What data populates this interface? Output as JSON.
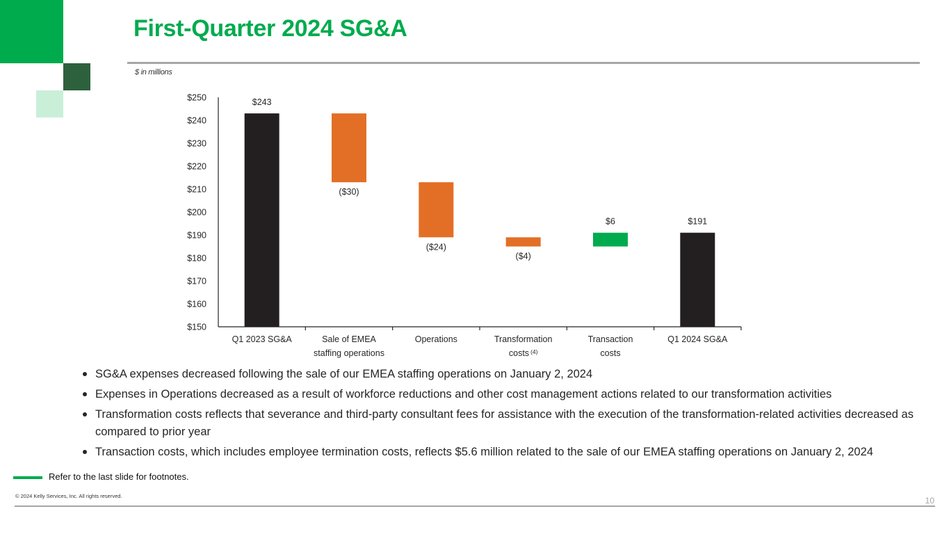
{
  "colors": {
    "brand_green": "#00ab4e",
    "dark_green": "#2d613d",
    "light_green": "#c9efd9",
    "decrease": "#e36f26",
    "increase": "#00ab4e",
    "total": "#231f20",
    "rule_gray": "#a6a6a6"
  },
  "header": {
    "title": "First-Quarter 2024 SG&A",
    "units_note": "$ in millions"
  },
  "chart_data": {
    "type": "bar",
    "subtype": "waterfall",
    "ylim": [
      150,
      250
    ],
    "yticks": [
      {
        "value": 150,
        "label": "$150"
      },
      {
        "value": 160,
        "label": "$160"
      },
      {
        "value": 170,
        "label": "$170"
      },
      {
        "value": 180,
        "label": "$180"
      },
      {
        "value": 190,
        "label": "$190"
      },
      {
        "value": 200,
        "label": "$200"
      },
      {
        "value": 210,
        "label": "$210"
      },
      {
        "value": 220,
        "label": "$220"
      },
      {
        "value": 230,
        "label": "$230"
      },
      {
        "value": 240,
        "label": "$240"
      },
      {
        "value": 250,
        "label": "$250"
      }
    ],
    "bars": [
      {
        "category": [
          "Q1 2023 SG&A"
        ],
        "kind": "total",
        "start": 150,
        "end": 243,
        "label": "$243",
        "label_pos": "above"
      },
      {
        "category": [
          "Sale of EMEA",
          "staffing operations"
        ],
        "kind": "decrease",
        "start": 243,
        "end": 213,
        "label": "($30)",
        "label_pos": "below"
      },
      {
        "category": [
          "Operations"
        ],
        "kind": "decrease",
        "start": 213,
        "end": 189,
        "label": "($24)",
        "label_pos": "below"
      },
      {
        "category": [
          "Transformation",
          "costs"
        ],
        "category_sup": "(4)",
        "kind": "decrease",
        "start": 189,
        "end": 185,
        "label": "($4)",
        "label_pos": "below"
      },
      {
        "category": [
          "Transaction",
          "costs"
        ],
        "kind": "increase",
        "start": 185,
        "end": 191,
        "label": "$6",
        "label_pos": "above"
      },
      {
        "category": [
          "Q1 2024 SG&A"
        ],
        "kind": "total",
        "start": 150,
        "end": 191,
        "label": "$191",
        "label_pos": "above"
      }
    ]
  },
  "bullets": [
    "SG&A expenses decreased following the sale of our EMEA staffing operations on January 2, 2024",
    "Expenses in Operations decreased as a result of workforce reductions and other cost management actions related to our transformation activities",
    "Transformation costs reflects that severance and third-party consultant fees for assistance with the execution of the transformation-related activities decreased as compared to prior year",
    "Transaction costs, which includes employee termination costs, reflects $5.6 million related to the sale of our EMEA staffing operations on January 2, 2024"
  ],
  "footer": {
    "footnote_note": "Refer to the last slide for footnotes.",
    "copyright": "© 2024 Kelly Services, Inc. All rights reserved.",
    "page_number": "10"
  }
}
